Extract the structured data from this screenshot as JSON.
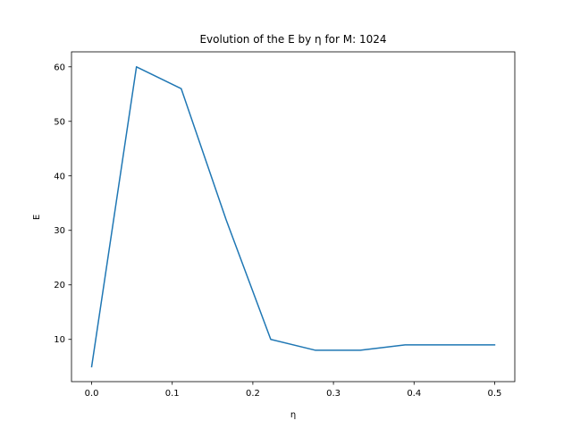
{
  "chart_data": {
    "type": "line",
    "title": "Evolution of the E by η for M: 1024",
    "xlabel": "η",
    "ylabel": "E",
    "xlim": [
      -0.025,
      0.525
    ],
    "ylim": [
      2.25,
      62.75
    ],
    "xticks": [
      0.0,
      0.1,
      0.2,
      0.3,
      0.4,
      0.5
    ],
    "xtick_labels": [
      "0.0",
      "0.1",
      "0.2",
      "0.3",
      "0.4",
      "0.5"
    ],
    "yticks": [
      10,
      20,
      30,
      40,
      50,
      60
    ],
    "ytick_labels": [
      "10",
      "20",
      "30",
      "40",
      "50",
      "60"
    ],
    "grid": false,
    "series": [
      {
        "color": "#1f77b4",
        "x": [
          0.0,
          0.0556,
          0.1111,
          0.1667,
          0.2222,
          0.2778,
          0.3333,
          0.3889,
          0.4444,
          0.5
        ],
        "y": [
          5,
          60,
          56,
          32,
          10,
          8,
          8,
          9,
          9,
          9
        ]
      }
    ]
  }
}
